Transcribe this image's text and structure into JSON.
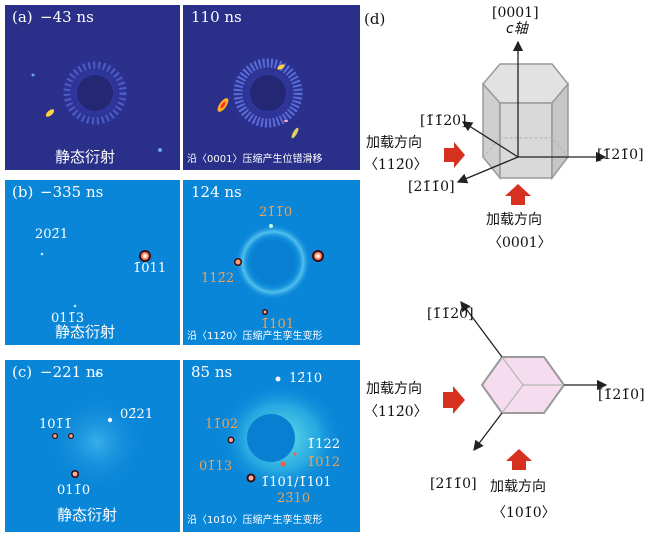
{
  "panels": {
    "a": {
      "panel_label": "(a)",
      "left_time": "−43 ns",
      "right_time": "110 ns",
      "left_caption": "静态衍射",
      "right_caption": "沿〈0001〉压缩产生位错滑移"
    },
    "b": {
      "panel_label": "(b)",
      "left_time": "−335 ns",
      "right_time": "124 ns",
      "left_caption": "静态衍射",
      "right_caption": "沿〈112̄0〉压缩产生孪生变形",
      "left_spots": [
        "202̄1",
        "1̄011",
        "011̄3"
      ],
      "right_spots": [
        "21̄1̄0",
        "112̄2",
        "1̄101"
      ]
    },
    "c": {
      "panel_label": "(c)",
      "left_time": "−221 ns",
      "right_time": "85 ns",
      "left_caption": "静态衍射",
      "right_caption": "沿〈101̄0〉压缩产生孪生变形",
      "left_spots": [
        "101̄1̄",
        "02̄21",
        "011̄0"
      ],
      "right_spots": [
        "12̄10",
        "11̄02",
        "01̄13",
        "1̄122",
        "1̄012",
        "1̄101/1̄101",
        "23̄10"
      ]
    }
  },
  "diagram": {
    "panel_label": "(d)",
    "top": {
      "axis_top": "[0001]",
      "axis_top_name": "c轴",
      "dir_upper_left": "[1̄1̄20]",
      "dir_right": "[1̄21̄0]",
      "dir_lower_left": "[21̄1̄0]",
      "load_side_label": "加载方向",
      "load_side_dir": "〈112̄0〉",
      "load_bottom_label": "加载方向",
      "load_bottom_dir": "〈0001〉"
    },
    "bottom": {
      "dir_top": "[1̄1̄20]",
      "dir_right": "[1̄21̄0]",
      "dir_lower_left": "[21̄1̄0]",
      "load_side_label": "加载方向",
      "load_side_dir": "〈112̄0〉",
      "load_bottom_label": "加载方向",
      "load_bottom_dir": "〈101̄0〉"
    }
  },
  "colors": {
    "dark_bg": "#2a2f8a",
    "cyan_bg": "#0a86d8",
    "orange_label": "#f0a050",
    "arrow_red": "#d6301f",
    "hex_fill": "#f6dcef"
  }
}
